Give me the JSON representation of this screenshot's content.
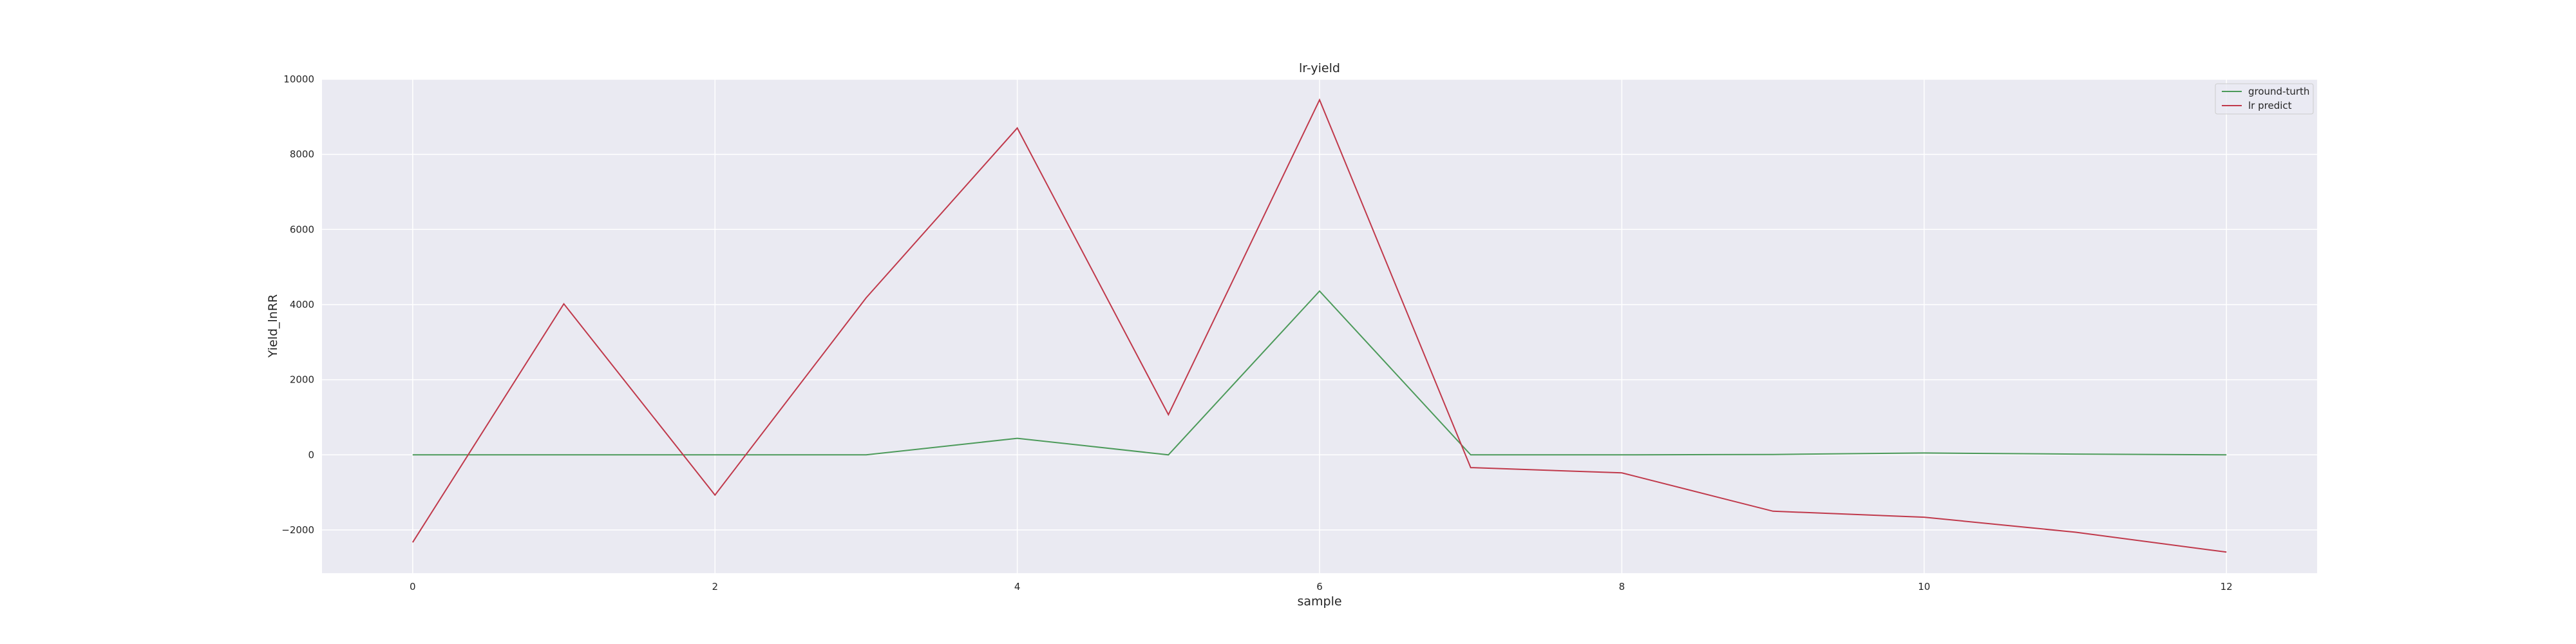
{
  "chart_data": {
    "type": "line",
    "title": "lr-yield",
    "xlabel": "sample",
    "ylabel": "Yield_lnRR",
    "x": [
      0,
      1,
      2,
      3,
      4,
      5,
      6,
      7,
      8,
      9,
      10,
      11,
      12
    ],
    "xlim": [
      -0.6,
      12.6
    ],
    "ylim": [
      -3150,
      10000
    ],
    "xticks": [
      0,
      2,
      4,
      6,
      8,
      10,
      12
    ],
    "yticks": [
      -2000,
      0,
      2000,
      4000,
      6000,
      8000,
      10000
    ],
    "grid": true,
    "legend_position": "top-right",
    "series": [
      {
        "name": "ground-turth",
        "color": "#4c9a5a",
        "values": [
          0,
          0,
          0,
          0,
          440,
          0,
          4360,
          0,
          0,
          10,
          50,
          20,
          0
        ]
      },
      {
        "name": "lr predict",
        "color": "#c0394b",
        "values": [
          -2330,
          4020,
          -1070,
          4180,
          8700,
          1070,
          9450,
          -340,
          -480,
          -1500,
          -1660,
          -2060,
          -2590
        ]
      }
    ]
  }
}
